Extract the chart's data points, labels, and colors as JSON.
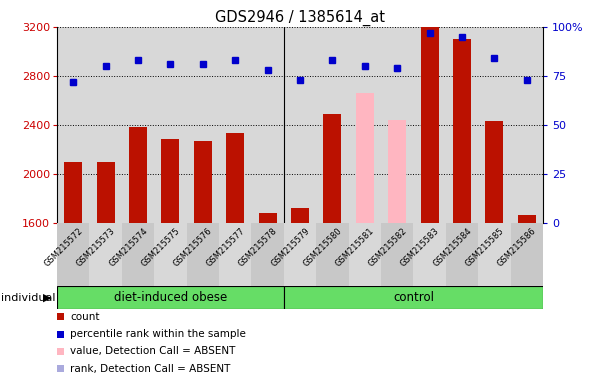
{
  "title": "GDS2946 / 1385614_at",
  "samples": [
    "GSM215572",
    "GSM215573",
    "GSM215574",
    "GSM215575",
    "GSM215576",
    "GSM215577",
    "GSM215578",
    "GSM215579",
    "GSM215580",
    "GSM215581",
    "GSM215582",
    "GSM215583",
    "GSM215584",
    "GSM215585",
    "GSM215586"
  ],
  "counts": [
    2100,
    2100,
    2380,
    2280,
    2270,
    2330,
    1680,
    1720,
    2490,
    null,
    null,
    3200,
    3100,
    2430,
    1660
  ],
  "absent_values": [
    2100,
    null,
    null,
    null,
    null,
    null,
    null,
    null,
    null,
    2660,
    2440,
    null,
    null,
    null,
    null
  ],
  "percentile_ranks": [
    72,
    80,
    83,
    81,
    81,
    83,
    78,
    73,
    83,
    80,
    79,
    97,
    95,
    84,
    73
  ],
  "absent_ranks": [
    72,
    null,
    null,
    null,
    null,
    null,
    null,
    null,
    null,
    80,
    79,
    null,
    null,
    null,
    null
  ],
  "group_labels": [
    "diet-induced obese",
    "control"
  ],
  "group_split": 7,
  "ylim_left": [
    1600,
    3200
  ],
  "ylim_right": [
    0,
    100
  ],
  "yticks_left": [
    1600,
    2000,
    2400,
    2800,
    3200
  ],
  "yticks_right": [
    0,
    25,
    50,
    75,
    100
  ],
  "ytick_right_labels": [
    "0",
    "25",
    "50",
    "75",
    "100%"
  ],
  "ylabel_left_color": "#cc0000",
  "ylabel_right_color": "#0000cc",
  "bar_color_present": "#bb1100",
  "bar_color_absent": "#ffb6c1",
  "dot_color_present": "#0000cc",
  "dot_color_absent": "#aaaadd",
  "bg_color": "#d8d8d8",
  "legend_items": [
    {
      "label": "count",
      "color": "#bb1100",
      "type": "rect"
    },
    {
      "label": "percentile rank within the sample",
      "color": "#0000cc",
      "type": "rect"
    },
    {
      "label": "value, Detection Call = ABSENT",
      "color": "#ffb6c1",
      "type": "rect"
    },
    {
      "label": "rank, Detection Call = ABSENT",
      "color": "#aaaadd",
      "type": "rect"
    }
  ]
}
